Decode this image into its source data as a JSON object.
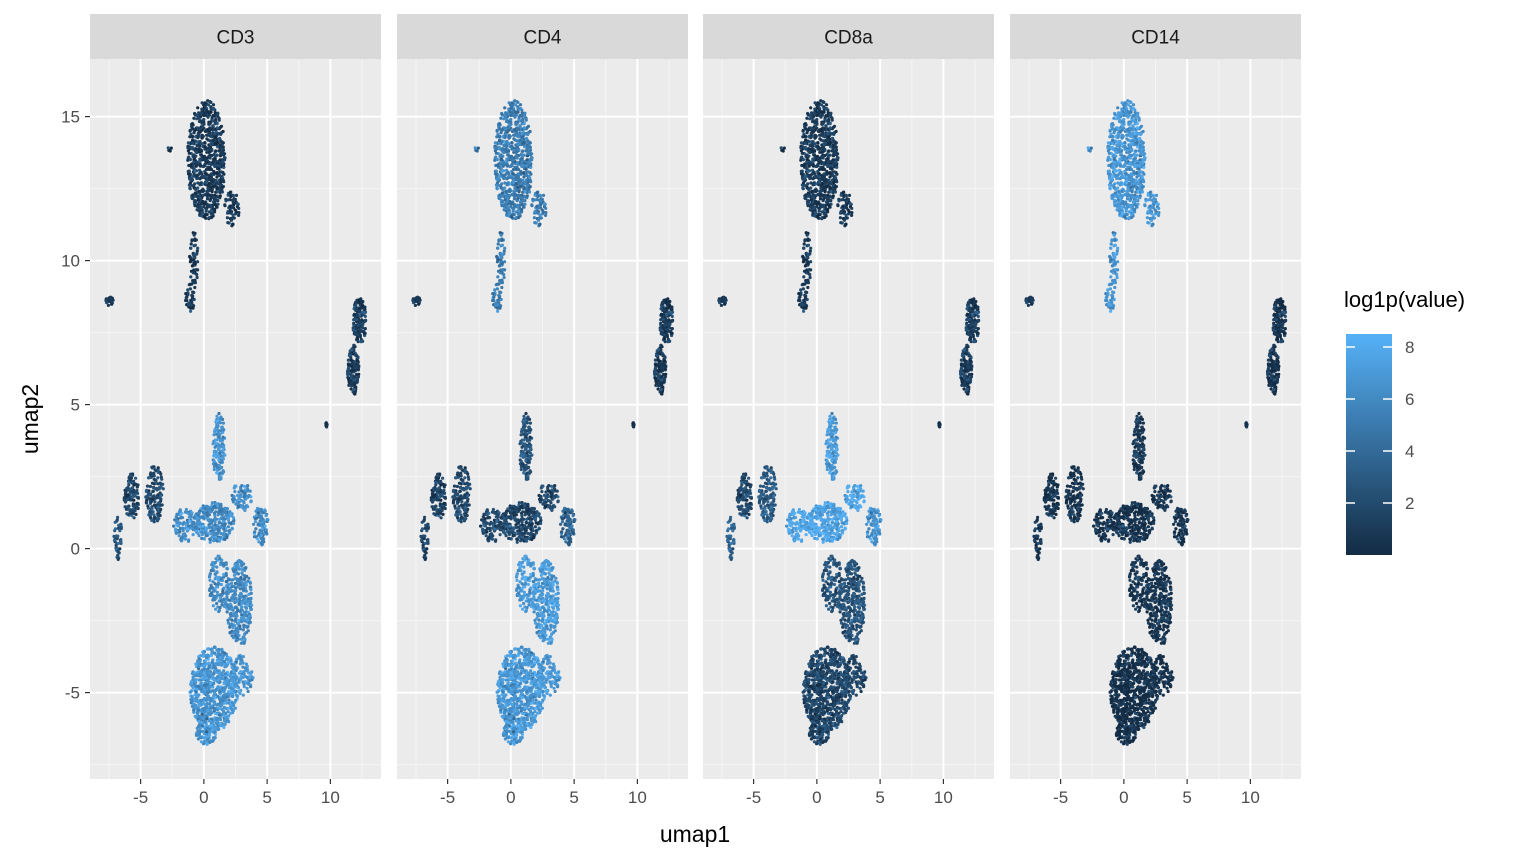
{
  "chart_data": {
    "type": "scatter",
    "title": "",
    "xlabel": "umap1",
    "ylabel": "umap2",
    "xlim": [
      -9,
      14
    ],
    "ylim": [
      -8,
      17
    ],
    "x_ticks": [
      -5,
      0,
      5,
      10
    ],
    "x_tick_labels": [
      "-5",
      "0",
      "5",
      "10"
    ],
    "y_ticks": [
      -5,
      0,
      5,
      10,
      15
    ],
    "y_tick_labels": [
      "-5",
      "0",
      "5",
      "10",
      "15"
    ],
    "grid": true,
    "facets": [
      {
        "name": "CD3",
        "levels": {
          "top": 1.0,
          "right": 1.2,
          "dot": 0.8,
          "left": 1.8,
          "left2": 2.0,
          "left_arm": 2.5,
          "center": 6.2,
          "upper_center": 6.5,
          "right_lobe": 6.0,
          "lower_right": 6.0,
          "bottom": 6.8
        }
      },
      {
        "name": "CD4",
        "levels": {
          "top": 5.2,
          "right": 1.0,
          "dot": 0.8,
          "left": 1.5,
          "left2": 1.8,
          "left_arm": 1.5,
          "center": 1.8,
          "upper_center": 2.5,
          "right_lobe": 3.5,
          "lower_right": 7.0,
          "bottom": 7.0
        }
      },
      {
        "name": "CD8a",
        "levels": {
          "top": 1.0,
          "right": 1.2,
          "dot": 0.8,
          "left": 2.0,
          "left2": 3.0,
          "left_arm": 3.5,
          "center": 7.8,
          "upper_center": 7.0,
          "right_lobe": 6.5,
          "lower_right": 2.5,
          "bottom": 1.8
        }
      },
      {
        "name": "CD14",
        "levels": {
          "top": 6.8,
          "right": 0.6,
          "dot": 1.0,
          "left": 0.6,
          "left2": 0.6,
          "left_arm": 0.6,
          "center": 0.6,
          "upper_center": 0.8,
          "right_lobe": 0.6,
          "lower_right": 0.6,
          "bottom": 0.4
        }
      }
    ],
    "legend": {
      "title": "log1p(value)",
      "placement": "right",
      "range": [
        0,
        8.5
      ],
      "ticks": [
        2,
        4,
        6,
        8
      ],
      "tick_labels": [
        "2",
        "4",
        "6",
        "8"
      ],
      "low_color": "#132B43",
      "high_color": "#56B1F7"
    },
    "colors": {
      "panel_bg": "#EBEBEB",
      "strip_bg": "#D9D9D9",
      "grid_major": "#FFFFFF",
      "grid_minor": "#F5F5F5"
    }
  }
}
